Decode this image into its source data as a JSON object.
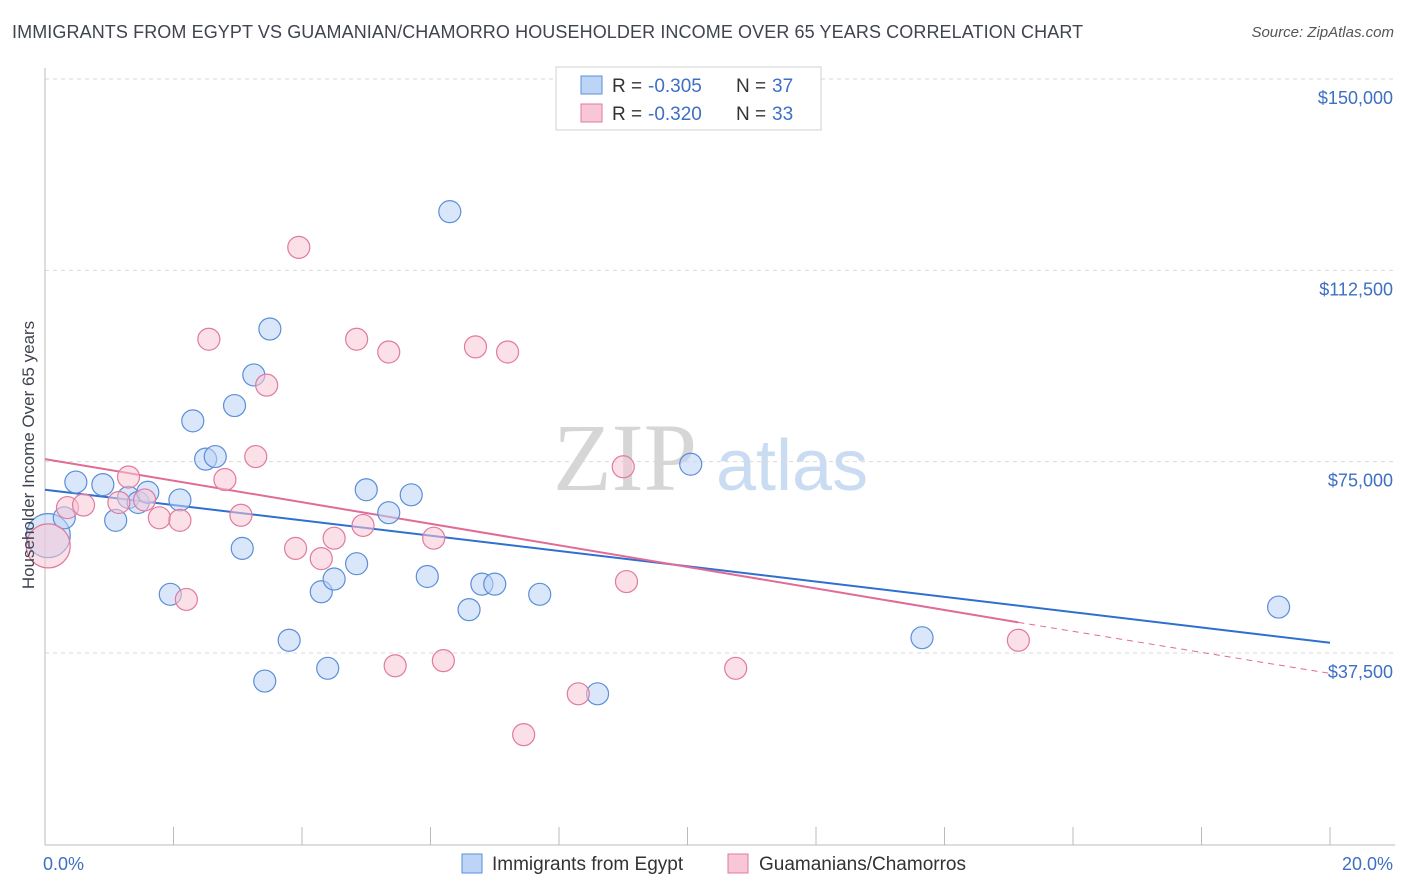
{
  "header": {
    "title": "IMMIGRANTS FROM EGYPT VS GUAMANIAN/CHAMORRO HOUSEHOLDER INCOME OVER 65 YEARS CORRELATION CHART",
    "source": "Source: ZipAtlas.com"
  },
  "watermark": {
    "zip": "ZIP",
    "atlas": "atlas"
  },
  "legend": {
    "rows": [
      {
        "r_label": "R =",
        "r_value": "-0.305",
        "n_label": "N =",
        "n_value": "37"
      },
      {
        "r_label": "R =",
        "r_value": "-0.320",
        "n_label": "N =",
        "n_value": "33"
      }
    ]
  },
  "chart_data": {
    "type": "scatter",
    "title": "IMMIGRANTS FROM EGYPT VS GUAMANIAN/CHAMORRO HOUSEHOLDER INCOME OVER 65 YEARS CORRELATION CHART",
    "xlabel": "",
    "ylabel": "Householder Income Over 65 years",
    "xlim": [
      0,
      20
    ],
    "ylim": [
      0,
      160000
    ],
    "x_tick_labels": [
      "0.0%",
      "20.0%"
    ],
    "y_ticks": [
      37500,
      75000,
      112500,
      150000
    ],
    "y_tick_labels": [
      "$37,500",
      "$75,000",
      "$112,500",
      "$150,000"
    ],
    "grid": true,
    "colors": {
      "blue": "#5b8fd6",
      "blue_fill": "#bcd4f5",
      "pink": "#e07aa0",
      "pink_fill": "#f8c6d6",
      "blue_line": "#2f6fcf",
      "pink_line": "#e06b96"
    },
    "series": [
      {
        "name": "Immigrants from Egypt",
        "color": "blue",
        "points": [
          [
            0.05,
            60500,
            22
          ],
          [
            0.3,
            64000,
            11
          ],
          [
            0.48,
            71000,
            11
          ],
          [
            0.9,
            70500,
            11
          ],
          [
            1.1,
            63500,
            11
          ],
          [
            1.3,
            68000,
            11
          ],
          [
            1.45,
            67000,
            11
          ],
          [
            1.6,
            69000,
            11
          ],
          [
            1.95,
            49000,
            11
          ],
          [
            2.1,
            67500,
            11
          ],
          [
            2.3,
            83000,
            11
          ],
          [
            2.5,
            75500,
            11
          ],
          [
            2.65,
            76000,
            11
          ],
          [
            2.95,
            86000,
            11
          ],
          [
            3.07,
            58000,
            11
          ],
          [
            3.25,
            92000,
            11
          ],
          [
            3.42,
            32000,
            11
          ],
          [
            3.5,
            101000,
            11
          ],
          [
            3.8,
            40000,
            11
          ],
          [
            4.3,
            49500,
            11
          ],
          [
            4.4,
            34500,
            11
          ],
          [
            4.5,
            52000,
            11
          ],
          [
            4.85,
            55000,
            11
          ],
          [
            5.0,
            69500,
            11
          ],
          [
            5.35,
            65000,
            11
          ],
          [
            5.7,
            68500,
            11
          ],
          [
            5.95,
            52500,
            11
          ],
          [
            6.3,
            124000,
            11
          ],
          [
            6.6,
            46000,
            11
          ],
          [
            6.8,
            51000,
            11
          ],
          [
            7.0,
            51000,
            11
          ],
          [
            7.7,
            49000,
            11
          ],
          [
            8.6,
            29500,
            11
          ],
          [
            10.05,
            74500,
            11
          ],
          [
            13.65,
            40500,
            11
          ],
          [
            19.2,
            46500,
            11
          ]
        ],
        "trend": {
          "x": [
            0,
            20
          ],
          "y": [
            69500,
            39500
          ]
        }
      },
      {
        "name": "Guamanians/Chamorros",
        "color": "pink",
        "points": [
          [
            0.05,
            58500,
            22
          ],
          [
            0.35,
            66000,
            11
          ],
          [
            0.6,
            66500,
            11
          ],
          [
            1.15,
            67000,
            11
          ],
          [
            1.3,
            72000,
            11
          ],
          [
            1.55,
            67500,
            11
          ],
          [
            1.78,
            64000,
            11
          ],
          [
            2.1,
            63500,
            11
          ],
          [
            2.2,
            48000,
            11
          ],
          [
            2.55,
            99000,
            11
          ],
          [
            2.8,
            71500,
            11
          ],
          [
            3.05,
            64500,
            11
          ],
          [
            3.28,
            76000,
            11
          ],
          [
            3.45,
            90000,
            11
          ],
          [
            3.9,
            58000,
            11
          ],
          [
            3.95,
            117000,
            11
          ],
          [
            4.3,
            56000,
            11
          ],
          [
            4.5,
            60000,
            11
          ],
          [
            4.85,
            99000,
            11
          ],
          [
            4.95,
            62500,
            11
          ],
          [
            5.35,
            96500,
            11
          ],
          [
            5.45,
            35000,
            11
          ],
          [
            6.05,
            60000,
            11
          ],
          [
            6.2,
            36000,
            11
          ],
          [
            6.7,
            97500,
            11
          ],
          [
            7.2,
            96500,
            11
          ],
          [
            7.45,
            21500,
            11
          ],
          [
            8.3,
            29500,
            11
          ],
          [
            9.0,
            74000,
            11
          ],
          [
            9.05,
            51500,
            11
          ],
          [
            10.75,
            34500,
            11
          ],
          [
            15.15,
            40000,
            11
          ]
        ],
        "trend": {
          "x": [
            0,
            15.15
          ],
          "y": [
            75500,
            43500
          ]
        },
        "trend_extension": {
          "x": [
            15.15,
            20
          ],
          "y": [
            43500,
            33500
          ]
        }
      }
    ]
  },
  "bottom_legend": {
    "items": [
      {
        "label": "Immigrants from Egypt"
      },
      {
        "label": "Guamanians/Chamorros"
      }
    ]
  }
}
